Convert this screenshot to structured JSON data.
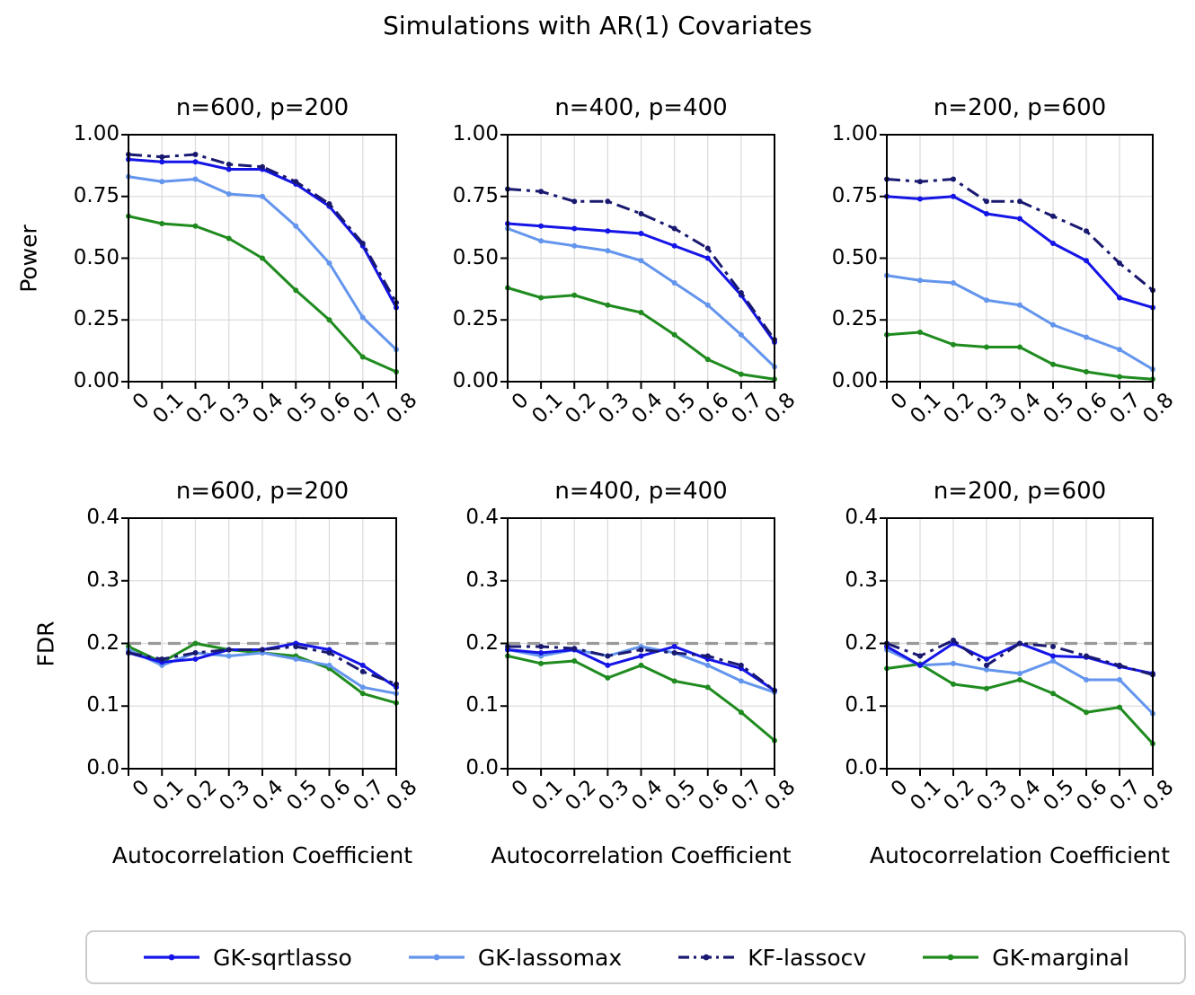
{
  "figure_title": "Simulations with AR(1) Covariates",
  "x_axis_label": "Autocorrelation Coefficient",
  "colors": {
    "gk_sqrtlasso": "#1414e6",
    "gk_lassomax": "#6495ed",
    "kf_lassocv": "#191970",
    "gk_marginal": "#1f8b1f",
    "reference_line": "#999999",
    "grid": "#dcdcdc",
    "spine": "#000000"
  },
  "legend": {
    "entries": [
      {
        "label": "GK-sqrtlasso",
        "color": "#1414e6",
        "dash": "solid"
      },
      {
        "label": "GK-lassomax",
        "color": "#6495ed",
        "dash": "solid"
      },
      {
        "label": "KF-lassocv",
        "color": "#191970",
        "dash": "dashdot"
      },
      {
        "label": "GK-marginal",
        "color": "#1f8b1f",
        "dash": "solid"
      }
    ]
  },
  "chart_data": [
    {
      "type": "line",
      "title": "n=600, p=200",
      "ylabel": "Power",
      "xlabel": "",
      "x": [
        0,
        0.1,
        0.2,
        0.3,
        0.4,
        0.5,
        0.6,
        0.7,
        0.8
      ],
      "xtick_labels": [
        "0",
        "0.1",
        "0.2",
        "0.3",
        "0.4",
        "0.5",
        "0.6",
        "0.7",
        "0.8"
      ],
      "ylim": [
        0,
        1
      ],
      "yticks": [
        0,
        0.25,
        0.5,
        0.75,
        1.0
      ],
      "ytick_labels": [
        "0.00",
        "0.25",
        "0.50",
        "0.75",
        "1.00"
      ],
      "grid": true,
      "reference_line": null,
      "series": [
        {
          "name": "GK-sqrtlasso",
          "values": [
            0.9,
            0.89,
            0.89,
            0.86,
            0.86,
            0.8,
            0.71,
            0.55,
            0.3
          ]
        },
        {
          "name": "GK-lassomax",
          "values": [
            0.83,
            0.81,
            0.82,
            0.76,
            0.75,
            0.63,
            0.48,
            0.26,
            0.13
          ]
        },
        {
          "name": "KF-lassocv",
          "values": [
            0.92,
            0.91,
            0.92,
            0.88,
            0.87,
            0.81,
            0.72,
            0.56,
            0.32
          ]
        },
        {
          "name": "GK-marginal",
          "values": [
            0.67,
            0.64,
            0.63,
            0.58,
            0.5,
            0.37,
            0.25,
            0.1,
            0.04
          ]
        }
      ]
    },
    {
      "type": "line",
      "title": "n=400, p=400",
      "ylabel": "",
      "xlabel": "",
      "x": [
        0,
        0.1,
        0.2,
        0.3,
        0.4,
        0.5,
        0.6,
        0.7,
        0.8
      ],
      "xtick_labels": [
        "0",
        "0.1",
        "0.2",
        "0.3",
        "0.4",
        "0.5",
        "0.6",
        "0.7",
        "0.8"
      ],
      "ylim": [
        0,
        1
      ],
      "yticks": [
        0,
        0.25,
        0.5,
        0.75,
        1.0
      ],
      "ytick_labels": [
        "0.00",
        "0.25",
        "0.50",
        "0.75",
        "1.00"
      ],
      "grid": true,
      "reference_line": null,
      "series": [
        {
          "name": "GK-sqrtlasso",
          "values": [
            0.64,
            0.63,
            0.62,
            0.61,
            0.6,
            0.55,
            0.5,
            0.35,
            0.16
          ]
        },
        {
          "name": "GK-lassomax",
          "values": [
            0.62,
            0.57,
            0.55,
            0.53,
            0.49,
            0.4,
            0.31,
            0.19,
            0.06
          ]
        },
        {
          "name": "KF-lassocv",
          "values": [
            0.78,
            0.77,
            0.73,
            0.73,
            0.68,
            0.62,
            0.54,
            0.36,
            0.17
          ]
        },
        {
          "name": "GK-marginal",
          "values": [
            0.38,
            0.34,
            0.35,
            0.31,
            0.28,
            0.19,
            0.09,
            0.03,
            0.01
          ]
        }
      ]
    },
    {
      "type": "line",
      "title": "n=200, p=600",
      "ylabel": "",
      "xlabel": "",
      "x": [
        0,
        0.1,
        0.2,
        0.3,
        0.4,
        0.5,
        0.6,
        0.7,
        0.8
      ],
      "xtick_labels": [
        "0",
        "0.1",
        "0.2",
        "0.3",
        "0.4",
        "0.5",
        "0.6",
        "0.7",
        "0.8"
      ],
      "ylim": [
        0,
        1
      ],
      "yticks": [
        0,
        0.25,
        0.5,
        0.75,
        1.0
      ],
      "ytick_labels": [
        "0.00",
        "0.25",
        "0.50",
        "0.75",
        "1.00"
      ],
      "grid": true,
      "reference_line": null,
      "series": [
        {
          "name": "GK-sqrtlasso",
          "values": [
            0.75,
            0.74,
            0.75,
            0.68,
            0.66,
            0.56,
            0.49,
            0.34,
            0.3
          ]
        },
        {
          "name": "GK-lassomax",
          "values": [
            0.43,
            0.41,
            0.4,
            0.33,
            0.31,
            0.23,
            0.18,
            0.13,
            0.05
          ]
        },
        {
          "name": "KF-lassocv",
          "values": [
            0.82,
            0.81,
            0.82,
            0.73,
            0.73,
            0.67,
            0.61,
            0.48,
            0.37
          ]
        },
        {
          "name": "GK-marginal",
          "values": [
            0.19,
            0.2,
            0.15,
            0.14,
            0.14,
            0.07,
            0.04,
            0.02,
            0.01
          ]
        }
      ]
    },
    {
      "type": "line",
      "title": "n=600, p=200",
      "ylabel": "FDR",
      "xlabel": "Autocorrelation Coefficient",
      "x": [
        0,
        0.1,
        0.2,
        0.3,
        0.4,
        0.5,
        0.6,
        0.7,
        0.8
      ],
      "xtick_labels": [
        "0",
        "0.1",
        "0.2",
        "0.3",
        "0.4",
        "0.5",
        "0.6",
        "0.7",
        "0.8"
      ],
      "ylim": [
        0,
        0.4
      ],
      "yticks": [
        0,
        0.1,
        0.2,
        0.3,
        0.4
      ],
      "ytick_labels": [
        "0.0",
        "0.1",
        "0.2",
        "0.3",
        "0.4"
      ],
      "grid": true,
      "reference_line": 0.2,
      "series": [
        {
          "name": "GK-sqrtlasso",
          "values": [
            0.185,
            0.17,
            0.175,
            0.19,
            0.19,
            0.2,
            0.19,
            0.165,
            0.13
          ]
        },
        {
          "name": "GK-lassomax",
          "values": [
            0.19,
            0.165,
            0.185,
            0.18,
            0.185,
            0.175,
            0.165,
            0.13,
            0.12
          ]
        },
        {
          "name": "KF-lassocv",
          "values": [
            0.185,
            0.175,
            0.185,
            0.19,
            0.19,
            0.195,
            0.185,
            0.155,
            0.135
          ]
        },
        {
          "name": "GK-marginal",
          "values": [
            0.195,
            0.17,
            0.2,
            0.19,
            0.185,
            0.18,
            0.16,
            0.12,
            0.105
          ]
        }
      ]
    },
    {
      "type": "line",
      "title": "n=400, p=400",
      "ylabel": "",
      "xlabel": "Autocorrelation Coefficient",
      "x": [
        0,
        0.1,
        0.2,
        0.3,
        0.4,
        0.5,
        0.6,
        0.7,
        0.8
      ],
      "xtick_labels": [
        "0",
        "0.1",
        "0.2",
        "0.3",
        "0.4",
        "0.5",
        "0.6",
        "0.7",
        "0.8"
      ],
      "ylim": [
        0,
        0.4
      ],
      "yticks": [
        0,
        0.1,
        0.2,
        0.3,
        0.4
      ],
      "ytick_labels": [
        "0.0",
        "0.1",
        "0.2",
        "0.3",
        "0.4"
      ],
      "grid": true,
      "reference_line": 0.2,
      "series": [
        {
          "name": "GK-sqrtlasso",
          "values": [
            0.19,
            0.185,
            0.19,
            0.165,
            0.18,
            0.195,
            0.175,
            0.16,
            0.125
          ]
        },
        {
          "name": "GK-lassomax",
          "values": [
            0.19,
            0.18,
            0.19,
            0.18,
            0.195,
            0.185,
            0.165,
            0.14,
            0.122
          ]
        },
        {
          "name": "KF-lassocv",
          "values": [
            0.195,
            0.195,
            0.192,
            0.18,
            0.19,
            0.185,
            0.18,
            0.165,
            0.125
          ]
        },
        {
          "name": "GK-marginal",
          "values": [
            0.18,
            0.168,
            0.172,
            0.145,
            0.165,
            0.14,
            0.13,
            0.09,
            0.045
          ]
        }
      ]
    },
    {
      "type": "line",
      "title": "n=200, p=600",
      "ylabel": "",
      "xlabel": "Autocorrelation Coefficient",
      "x": [
        0,
        0.1,
        0.2,
        0.3,
        0.4,
        0.5,
        0.6,
        0.7,
        0.8
      ],
      "xtick_labels": [
        "0",
        "0.1",
        "0.2",
        "0.3",
        "0.4",
        "0.5",
        "0.6",
        "0.7",
        "0.8"
      ],
      "ylim": [
        0,
        0.4
      ],
      "yticks": [
        0,
        0.1,
        0.2,
        0.3,
        0.4
      ],
      "ytick_labels": [
        "0.0",
        "0.1",
        "0.2",
        "0.3",
        "0.4"
      ],
      "grid": true,
      "reference_line": 0.2,
      "series": [
        {
          "name": "GK-sqrtlasso",
          "values": [
            0.195,
            0.165,
            0.2,
            0.175,
            0.2,
            0.18,
            0.178,
            0.163,
            0.152
          ]
        },
        {
          "name": "GK-lassomax",
          "values": [
            0.19,
            0.165,
            0.168,
            0.158,
            0.152,
            0.172,
            0.142,
            0.142,
            0.088
          ]
        },
        {
          "name": "KF-lassocv",
          "values": [
            0.2,
            0.18,
            0.205,
            0.165,
            0.2,
            0.195,
            0.18,
            0.165,
            0.15
          ]
        },
        {
          "name": "GK-marginal",
          "values": [
            0.16,
            0.167,
            0.135,
            0.128,
            0.142,
            0.12,
            0.09,
            0.098,
            0.04
          ]
        }
      ]
    }
  ]
}
